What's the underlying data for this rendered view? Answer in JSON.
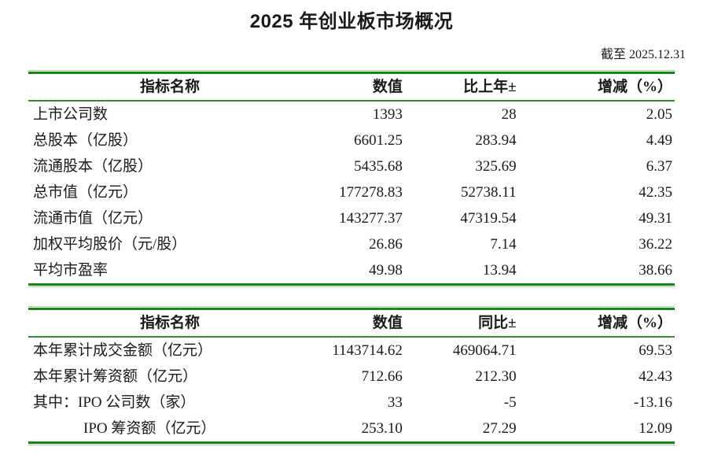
{
  "page": {
    "title": "2025 年创业板市场概况",
    "as_of": "截至 2025.12.31"
  },
  "colors": {
    "rule_green_dark": "#128a12",
    "rule_green_mid": "#2d8f2d",
    "rule_green_light": "#aed7ae",
    "text": "#1a1a1a"
  },
  "table1": {
    "headers": [
      "指标名称",
      "数值",
      "比上年±",
      "增减（%）"
    ],
    "rows": [
      {
        "name": "上市公司数",
        "value": "1393",
        "change": "28",
        "pct": "2.05"
      },
      {
        "name": "总股本（亿股）",
        "value": "6601.25",
        "change": "283.94",
        "pct": "4.49"
      },
      {
        "name": "流通股本（亿股）",
        "value": "5435.68",
        "change": "325.69",
        "pct": "6.37"
      },
      {
        "name": "总市值（亿元）",
        "value": "177278.83",
        "change": "52738.11",
        "pct": "42.35"
      },
      {
        "name": "流通市值（亿元）",
        "value": "143277.37",
        "change": "47319.54",
        "pct": "49.31"
      },
      {
        "name": "加权平均股价（元/股）",
        "value": "26.86",
        "change": "7.14",
        "pct": "36.22"
      },
      {
        "name": "平均市盈率",
        "value": "49.98",
        "change": "13.94",
        "pct": "38.66"
      }
    ]
  },
  "table2": {
    "headers": [
      "指标名称",
      "数值",
      "同比±",
      "增减（%）"
    ],
    "rows": [
      {
        "name": "本年累计成交金额（亿元）",
        "value": "1143714.62",
        "change": "469064.71",
        "pct": "69.53"
      },
      {
        "name": "本年累计筹资额（亿元）",
        "value": "712.66",
        "change": "212.30",
        "pct": "42.43"
      },
      {
        "name": "其中：IPO 公司数（家）",
        "value": "33",
        "change": "-5",
        "pct": "-13.16"
      },
      {
        "name": "IPO 筹资额（亿元）",
        "value": "253.10",
        "change": "27.29",
        "pct": "12.09"
      }
    ]
  }
}
